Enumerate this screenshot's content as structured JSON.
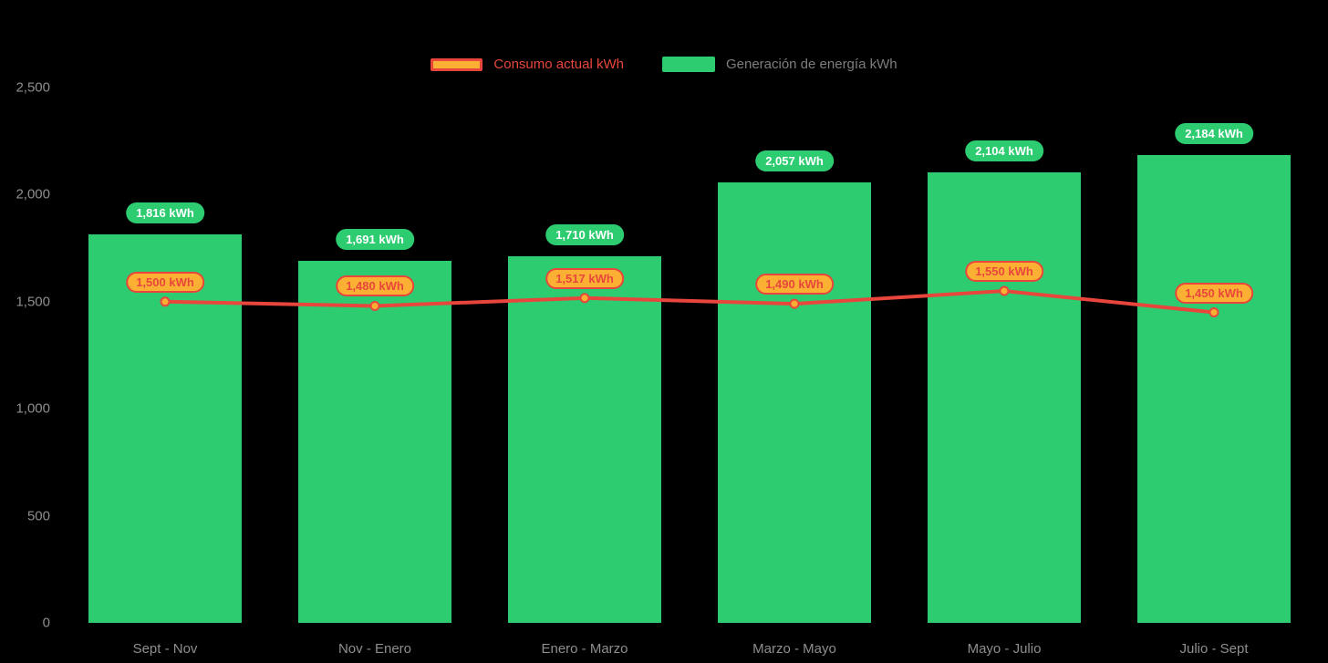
{
  "legend": {
    "consumption_label": "Consumo actual kWh",
    "generation_label": "Generación de energía kWh"
  },
  "colors": {
    "background": "#000000",
    "bar_green": "#2ECC71",
    "line_red": "#E8463C",
    "marker_fill": "#FBB034",
    "marker_border": "#E8463C",
    "pill_orange_bg": "#FBB034",
    "pill_orange_text": "#E8463C",
    "pill_green_bg": "#2ECC71",
    "pill_green_text": "#FFFFFF",
    "axis_text": "#8E8E8E"
  },
  "chart_data": {
    "type": "bar",
    "title": "",
    "xlabel": "",
    "ylabel": "",
    "categories": [
      "Sept - Nov",
      "Nov - Enero",
      "Enero - Marzo",
      "Marzo - Mayo",
      "Mayo - Julio",
      "Julio - Sept"
    ],
    "series": [
      {
        "name": "Generación de energía kWh",
        "type": "bar",
        "values": [
          1816,
          1691,
          1710,
          2057,
          2104,
          2184
        ],
        "labels": [
          "1,816 kWh",
          "1,691 kWh",
          "1,710 kWh",
          "2,057 kWh",
          "2,104 kWh",
          "2,184 kWh"
        ]
      },
      {
        "name": "Consumo actual kWh",
        "type": "line",
        "values": [
          1500,
          1480,
          1517,
          1490,
          1550,
          1450
        ],
        "labels": [
          "1,500 kWh",
          "1,480 kWh",
          "1,517 kWh",
          "1,490 kWh",
          "1,550 kWh",
          "1,450 kWh"
        ]
      }
    ],
    "ylim": [
      0,
      2500
    ],
    "yticks": [
      0,
      500,
      1000,
      1500,
      2000,
      2500
    ],
    "ytick_labels": [
      "0",
      "500",
      "1,000",
      "1,500",
      "2,000",
      "2,500"
    ],
    "legend_position": "top",
    "grid": false
  }
}
